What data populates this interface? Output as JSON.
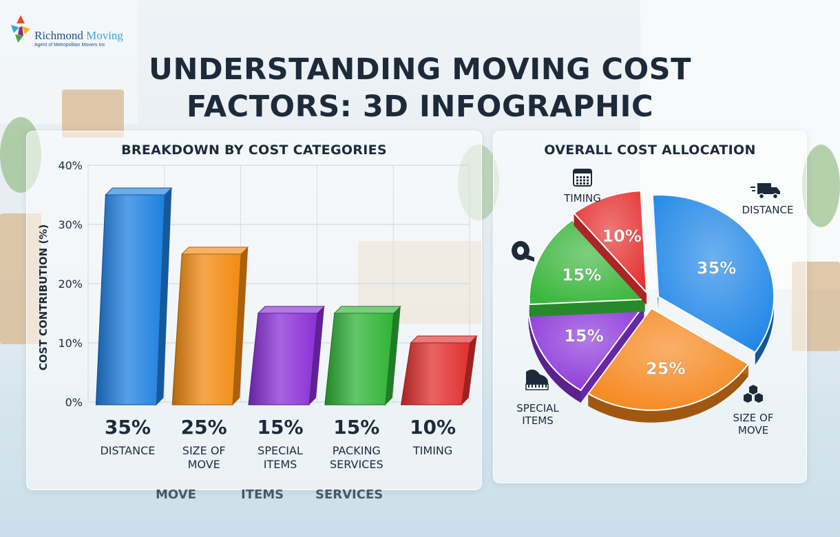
{
  "logo": {
    "brand_name": "Richmond",
    "brand_suffix": "Moving",
    "tagline": "Agent of Metropolitan Movers Inc"
  },
  "title": {
    "line1": "UNDERSTANDING MOVING COST",
    "line2": "FACTORS: 3D INFOGRAPHIC"
  },
  "chart_data": [
    {
      "type": "bar",
      "title": "BREAKDOWN BY COST CATEGORIES",
      "ylabel": "COST CONTRIBUTION (%)",
      "ylim": [
        0,
        40
      ],
      "yticks": [
        "0%",
        "10%",
        "20%",
        "30%",
        "40%"
      ],
      "grid": true,
      "categories": [
        {
          "label": [
            "DISTANCE"
          ],
          "value": 35,
          "value_label": "35%",
          "color": "#1e7fe0"
        },
        {
          "label": [
            "SIZE OF",
            "MOVE"
          ],
          "value": 25,
          "value_label": "25%",
          "color": "#f28a10"
        },
        {
          "label": [
            "SPECIAL",
            "ITEMS"
          ],
          "value": 15,
          "value_label": "15%",
          "color": "#8a2fd6"
        },
        {
          "label": [
            "PACKING",
            "SERVICES"
          ],
          "value": 15,
          "value_label": "15%",
          "color": "#2fb335"
        },
        {
          "label": [
            "TIMING"
          ],
          "value": 10,
          "value_label": "10%",
          "color": "#e12f2f"
        }
      ],
      "reflection_labels": [
        "MOVE",
        "ITEMS",
        "SERVICES"
      ]
    },
    {
      "type": "pie",
      "title": "OVERALL COST ALLOCATION",
      "slices": [
        {
          "label": "DISTANCE",
          "value": 35,
          "value_label": "35%",
          "color": "#1e86e6",
          "icon": "truck-icon"
        },
        {
          "label": "SIZE OF MOVE",
          "value": 25,
          "value_label": "25%",
          "color": "#f5861b",
          "icon": "boxes-icon"
        },
        {
          "label": "SPECIAL ITEMS",
          "value": 15,
          "value_label": "15%",
          "color": "#8a34d8",
          "icon": "piano-icon"
        },
        {
          "label": "",
          "value": 15,
          "value_label": "15%",
          "color": "#38b53a",
          "icon": "tape-icon"
        },
        {
          "label": "TIMING",
          "value": 10,
          "value_label": "10%",
          "color": "#e5302f",
          "icon": "calendar-icon"
        }
      ]
    }
  ]
}
